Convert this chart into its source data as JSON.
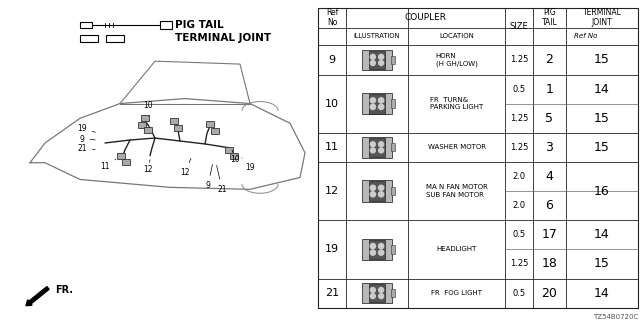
{
  "diagram_part_number": "TZ54B0720C",
  "background_color": "#ffffff",
  "pig_tail_label": "PIG TAIL",
  "terminal_joint_label": "TERMINAL JOINT",
  "fr_label": "FR.",
  "coupler_header": "COUPLER",
  "size_header": "SIZE",
  "pig_tail_header": "PIG\nTAIL",
  "terminal_joint_header": "TERMINAL\nJOINT",
  "illustration_header": "ILLUSTRATION",
  "location_header": "LOCATION",
  "ref_no_header": "Ref\nNo",
  "ref_no_sub": "Ref No",
  "rows": [
    {
      "ref_no": "9",
      "location": "HORN\n(H GH/LOW)",
      "sizes": [
        "1.25"
      ],
      "pig_tails": [
        "2"
      ],
      "term_joints": [
        "15"
      ],
      "n_sub": 1
    },
    {
      "ref_no": "10",
      "location": "FR  TURN&\nPARKING LIGHT",
      "sizes": [
        "0.5",
        "1.25"
      ],
      "pig_tails": [
        "1",
        "5"
      ],
      "term_joints": [
        "14",
        "15"
      ],
      "n_sub": 2
    },
    {
      "ref_no": "11",
      "location": "WASHER MOTOR",
      "sizes": [
        "1.25"
      ],
      "pig_tails": [
        "3"
      ],
      "term_joints": [
        "15"
      ],
      "n_sub": 1
    },
    {
      "ref_no": "12",
      "location": "MA N FAN MOTOR\nSUB FAN MOTOR",
      "sizes": [
        "2.0",
        "2.0"
      ],
      "pig_tails": [
        "4",
        "6"
      ],
      "term_joints": [
        "16"
      ],
      "n_sub": 2
    },
    {
      "ref_no": "19",
      "location": "HEADLIGHT",
      "sizes": [
        "0.5",
        "1.25"
      ],
      "pig_tails": [
        "17",
        "18"
      ],
      "term_joints": [
        "14",
        "15"
      ],
      "n_sub": 2
    },
    {
      "ref_no": "21",
      "location": "FR  FOG LIGHT",
      "sizes": [
        "0.5"
      ],
      "pig_tails": [
        "20"
      ],
      "term_joints": [
        "14"
      ],
      "n_sub": 1
    }
  ]
}
